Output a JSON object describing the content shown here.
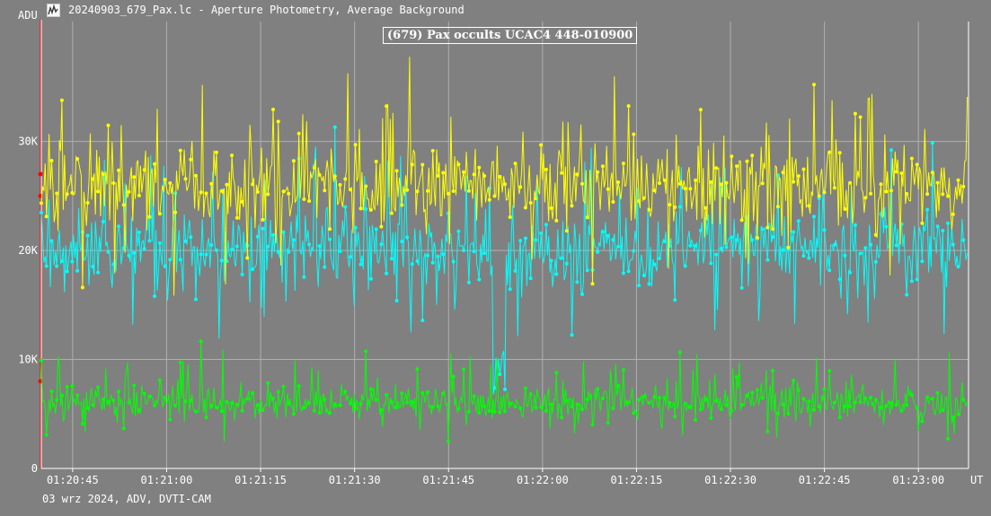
{
  "window": {
    "title": "20240903_679_Pax.lc - Aperture Photometry, Average Background",
    "footer": "03 wrz 2024, ADV, DVTI-CAM"
  },
  "colors": {
    "background": "#808080",
    "grid": "#b0b0b0",
    "target": "#00ff00",
    "comparison1": "#00ffff",
    "comparison2": "#ffff00",
    "cursor": "#ff0000"
  },
  "chart_data": {
    "type": "line",
    "title": "(679) Pax occults UCAC4 448-010900",
    "ylabel": "ADU",
    "xlabel": "UT",
    "ylim": [
      0,
      41000
    ],
    "xlim": [
      "01:20:40",
      "01:23:08"
    ],
    "y_ticks": [
      0,
      10000,
      20000,
      30000
    ],
    "y_tick_labels": [
      "0",
      "10K",
      "20K",
      "30K"
    ],
    "x_tick_labels": [
      "01:20:45",
      "01:21:00",
      "01:21:15",
      "01:21:30",
      "01:21:45",
      "01:22:00",
      "01:22:15",
      "01:22:30",
      "01:22:45",
      "01:23:00"
    ],
    "grid": true,
    "cursor_time": "01:20:40",
    "occultation": {
      "start": "01:21:52",
      "end": "01:21:54",
      "depth_fraction": 0.55
    },
    "series": [
      {
        "name": "",
        "color": "#ffff00",
        "mean": 25800,
        "scatter": 3100
      },
      {
        "name": "",
        "color": "#00ffff",
        "mean": 20100,
        "scatter": 2800,
        "occulted": true
      },
      {
        "name": "",
        "color": "#00ff00",
        "mean": 6000,
        "scatter": 1400
      }
    ]
  }
}
